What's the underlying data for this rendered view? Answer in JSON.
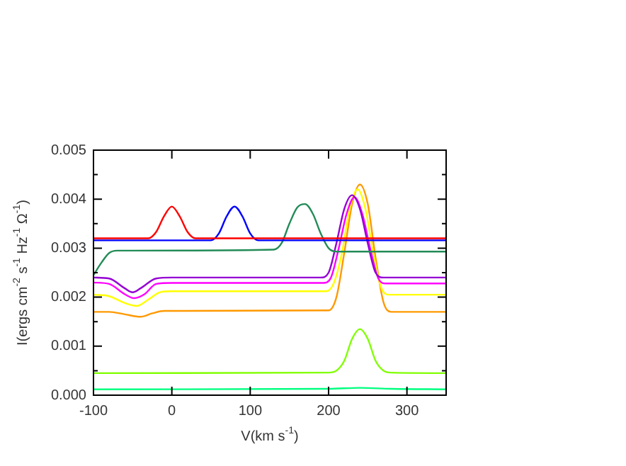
{
  "chart_data": {
    "type": "line",
    "xlabel": "V(km s$^{-1}$)",
    "ylabel": "I(ergs cm$^{-2}$ s$^{-1}$ Hz$^{-1}$ Ω$^{-1}$)",
    "xlim": [
      -100,
      350
    ],
    "xticks": [
      -100,
      0,
      100,
      200,
      300
    ],
    "ylim": [
      0,
      0.005
    ],
    "yticks": [
      {
        "value": 0,
        "label": "0.000"
      },
      {
        "value": 0.0005,
        "label": null
      },
      {
        "value": 0.001,
        "label": "0.001"
      },
      {
        "value": 0.0015,
        "label": null
      },
      {
        "value": 0.002,
        "label": "0.002"
      },
      {
        "value": 0.0025,
        "label": null
      },
      {
        "value": 0.003,
        "label": "0.003"
      },
      {
        "value": 0.0035,
        "label": null
      },
      {
        "value": 0.004,
        "label": "0.004"
      },
      {
        "value": 0.0045,
        "label": null
      },
      {
        "value": 0.005,
        "label": "0.005"
      }
    ],
    "grid": false,
    "legend": false,
    "marker": "none",
    "line_style": "solid",
    "series": [
      {
        "color": "#ff0000",
        "x": [
          -100,
          -30,
          -20,
          -10,
          0,
          10,
          20,
          30,
          350
        ],
        "values": [
          0.0032,
          0.0032,
          0.00333,
          0.00365,
          0.00385,
          0.00365,
          0.00333,
          0.0032,
          0.0032
        ]
      },
      {
        "color": "#0000ff",
        "x": [
          -100,
          50,
          60,
          70,
          80,
          90,
          100,
          110,
          350
        ],
        "values": [
          0.00316,
          0.00316,
          0.0033,
          0.00365,
          0.00385,
          0.00365,
          0.0033,
          0.00316,
          0.00316
        ]
      },
      {
        "color": "#228b57",
        "x": [
          -100,
          -90,
          -80,
          -70,
          -50,
          130,
          140,
          150,
          160,
          170,
          180,
          190,
          200,
          210,
          350
        ],
        "values": [
          0.00245,
          0.0027,
          0.0029,
          0.00295,
          0.00295,
          0.00297,
          0.0031,
          0.0035,
          0.00383,
          0.0039,
          0.0037,
          0.0033,
          0.003,
          0.00293,
          0.00293
        ]
      },
      {
        "color": "#9400d3",
        "x": [
          -100,
          -80,
          -60,
          -50,
          -40,
          -20,
          0,
          190,
          200,
          210,
          220,
          230,
          240,
          250,
          260,
          270,
          350
        ],
        "values": [
          0.0024,
          0.00238,
          0.00218,
          0.0021,
          0.00218,
          0.00238,
          0.0024,
          0.0024,
          0.0025,
          0.0031,
          0.0038,
          0.00408,
          0.0038,
          0.0031,
          0.0025,
          0.0024,
          0.0024
        ]
      },
      {
        "color": "#ff00ff",
        "x": [
          -100,
          -80,
          -60,
          -48,
          -35,
          -20,
          0,
          193,
          203,
          213,
          223,
          233,
          243,
          253,
          263,
          273,
          350
        ],
        "values": [
          0.0023,
          0.00227,
          0.00206,
          0.00198,
          0.00206,
          0.00227,
          0.00229,
          0.00229,
          0.0024,
          0.003,
          0.0037,
          0.00404,
          0.0037,
          0.003,
          0.0024,
          0.00228,
          0.00228
        ]
      },
      {
        "color": "#ffff00",
        "x": [
          -100,
          -80,
          -60,
          -45,
          -30,
          -15,
          0,
          197,
          207,
          217,
          227,
          237,
          247,
          257,
          267,
          277,
          350
        ],
        "values": [
          0.00205,
          0.00202,
          0.00188,
          0.00182,
          0.00195,
          0.0021,
          0.00212,
          0.00212,
          0.0023,
          0.0029,
          0.0038,
          0.0042,
          0.0038,
          0.0029,
          0.0022,
          0.00205,
          0.00205
        ]
      },
      {
        "color": "#ff9900",
        "x": [
          -100,
          -80,
          -60,
          -40,
          -25,
          -10,
          0,
          200,
          210,
          220,
          230,
          240,
          250,
          260,
          270,
          280,
          350
        ],
        "values": [
          0.0017,
          0.0017,
          0.00165,
          0.0016,
          0.00167,
          0.00172,
          0.00172,
          0.00173,
          0.002,
          0.0029,
          0.0039,
          0.0043,
          0.0039,
          0.0028,
          0.0019,
          0.0017,
          0.0017
        ]
      },
      {
        "color": "#80ff00",
        "x": [
          -100,
          200,
          210,
          220,
          230,
          240,
          250,
          260,
          270,
          280,
          350
        ],
        "values": [
          0.00045,
          0.00046,
          0.0005,
          0.0007,
          0.00115,
          0.00135,
          0.00115,
          0.0007,
          0.0005,
          0.00046,
          0.00045
        ]
      },
      {
        "color": "#00ff7f",
        "x": [
          -100,
          200,
          240,
          280,
          350
        ],
        "values": [
          0.00012,
          0.00013,
          0.00015,
          0.00013,
          0.00012
        ]
      }
    ]
  }
}
